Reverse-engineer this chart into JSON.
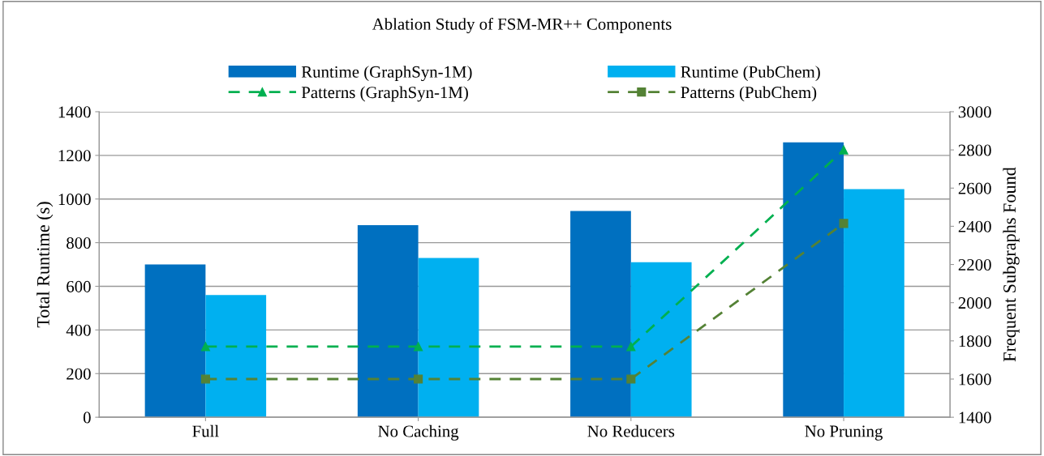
{
  "chart_data": {
    "type": "bar",
    "title": "Ablation Study of FSM-MR++ Components",
    "categories": [
      "Full",
      "No Caching",
      "No Reducers",
      "No Pruning"
    ],
    "series": [
      {
        "name": "Runtime (GraphSyn-1M)",
        "color": "#0070c0",
        "values": [
          700,
          880,
          945,
          1260
        ]
      },
      {
        "name": "Runtime (PubChem)",
        "color": "#00b0f0",
        "values": [
          560,
          730,
          710,
          1045
        ]
      },
      {
        "name": "Patterns (GraphSyn-1M)",
        "type": "line",
        "axis": "y2",
        "color": "#00b050",
        "marker": "triangle",
        "line_style": "dashed",
        "values": [
          1770,
          1770,
          1770,
          2800
        ]
      },
      {
        "name": "Patterns (PubChem)",
        "type": "line",
        "axis": "y2",
        "color": "#548235",
        "marker": "square",
        "line_style": "dashed",
        "values": [
          1600,
          1600,
          1600,
          2415
        ]
      }
    ],
    "ylabel": "Total Runtime (s)",
    "y2label": "Frequent Subgraphs Found",
    "ylim": [
      0,
      1400
    ],
    "yticks": [
      0,
      200,
      400,
      600,
      800,
      1000,
      1200,
      1400
    ],
    "y2lim": [
      1400,
      3000
    ],
    "y2ticks": [
      1400,
      1600,
      1800,
      2000,
      2200,
      2400,
      2600,
      2800,
      3000
    ],
    "grid": "y",
    "legend": "top"
  }
}
